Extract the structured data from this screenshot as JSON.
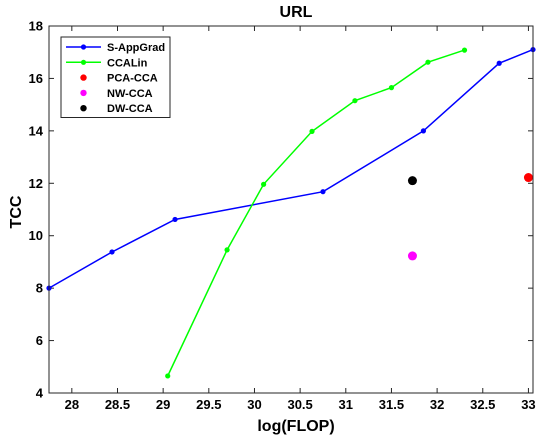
{
  "chart_data": {
    "type": "line",
    "title": "URL",
    "xlabel": "log(FLOP)",
    "ylabel": "TCC",
    "xlim": [
      27.75,
      33.05
    ],
    "ylim": [
      4,
      18
    ],
    "xticks": [
      "28",
      "28.5",
      "29",
      "29.5",
      "30",
      "30.5",
      "31",
      "31.5",
      "32",
      "32.5",
      "33"
    ],
    "xtick_values": [
      28,
      28.5,
      29,
      29.5,
      30,
      30.5,
      31,
      31.5,
      32,
      32.5,
      33
    ],
    "yticks": [
      "4",
      "6",
      "8",
      "10",
      "12",
      "14",
      "16",
      "18"
    ],
    "ytick_values": [
      4,
      6,
      8,
      10,
      12,
      14,
      16,
      18
    ],
    "grid": false,
    "legend_position": "top-left",
    "series": [
      {
        "name": "S-AppGrad",
        "color": "#0000ff",
        "style": "line-marker",
        "x": [
          27.75,
          28.44,
          29.13,
          30.75,
          31.85,
          32.68,
          33.05
        ],
        "y": [
          8.0,
          9.38,
          10.62,
          11.68,
          14.0,
          16.58,
          17.1
        ]
      },
      {
        "name": "CCALin",
        "color": "#00ff00",
        "style": "line-marker",
        "x": [
          29.05,
          29.7,
          30.1,
          30.63,
          31.1,
          31.5,
          31.9,
          32.3
        ],
        "y": [
          4.65,
          9.46,
          11.96,
          13.98,
          15.15,
          15.65,
          16.62,
          17.08
        ]
      },
      {
        "name": "PCA-CCA",
        "color": "#ff0000",
        "style": "marker",
        "x": [
          33.0
        ],
        "y": [
          12.22
        ]
      },
      {
        "name": "NW-CCA",
        "color": "#ff00ff",
        "style": "marker",
        "x": [
          31.73
        ],
        "y": [
          9.23
        ]
      },
      {
        "name": "DW-CCA",
        "color": "#000000",
        "style": "marker",
        "x": [
          31.73
        ],
        "y": [
          12.1
        ]
      }
    ]
  }
}
